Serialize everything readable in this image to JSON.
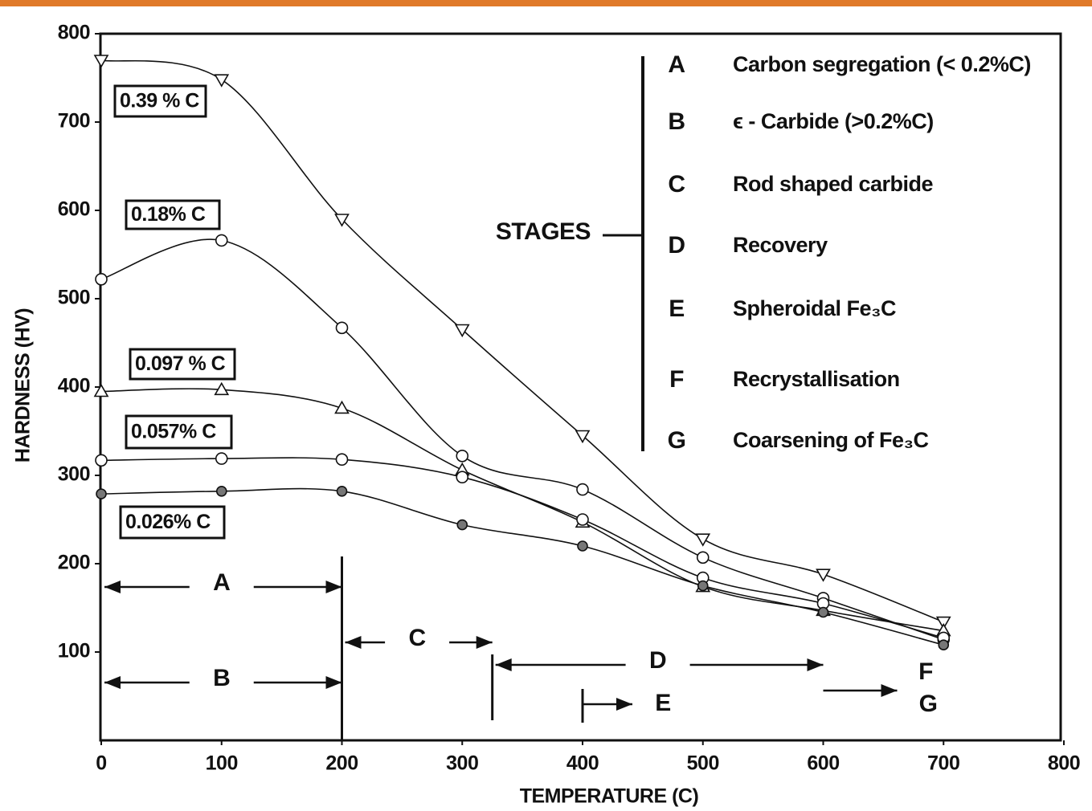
{
  "chart_data": {
    "type": "line",
    "x_label": "TEMPERATURE (C)",
    "y_label": "HARDNESS (HV)",
    "xlim": [
      0,
      800
    ],
    "ylim": [
      0,
      800
    ],
    "xticks": [
      0,
      100,
      200,
      300,
      400,
      500,
      600,
      700,
      800
    ],
    "yticks": [
      100,
      200,
      300,
      400,
      500,
      600,
      700,
      800
    ],
    "x": [
      0,
      100,
      200,
      300,
      400,
      500,
      600,
      700
    ],
    "series": [
      {
        "name": "0.39 % C",
        "color": "#111111",
        "marker": "triangle-down",
        "values": [
          770,
          748,
          590,
          465,
          345,
          228,
          188,
          134
        ]
      },
      {
        "name": "0.18% C",
        "color": "#111111",
        "marker": "circle",
        "values": [
          522,
          566,
          467,
          322,
          284,
          207,
          161,
          114
        ]
      },
      {
        "name": "0.097 % C",
        "color": "#111111",
        "marker": "triangle-up",
        "values": [
          395,
          397,
          376,
          306,
          247,
          174,
          147,
          124
        ]
      },
      {
        "name": "0.057% C",
        "color": "#111111",
        "marker": "circle",
        "values": [
          317,
          319,
          318,
          298,
          250,
          184,
          155,
          116
        ]
      },
      {
        "name": "0.026% C",
        "color": "#111111",
        "marker": "circle-filled",
        "values": [
          279,
          282,
          282,
          244,
          220,
          175,
          145,
          108
        ]
      }
    ],
    "stages_title": "STAGES",
    "stages": [
      {
        "letter": "A",
        "text": "Carbon segregation (< 0.2%C)"
      },
      {
        "letter": "B",
        "text": "ϵ - Carbide (>0.2%C)"
      },
      {
        "letter": "C",
        "text": "Rod shaped carbide"
      },
      {
        "letter": "D",
        "text": "Recovery"
      },
      {
        "letter": "E",
        "text": "Spheroidal  Fe₃C"
      },
      {
        "letter": "F",
        "text": "Recrystallisation"
      },
      {
        "letter": "G",
        "text": "Coarsening of  Fe₃C"
      }
    ],
    "stage_ranges": [
      {
        "label": "A",
        "from": 0,
        "to": 200
      },
      {
        "label": "B",
        "from": 0,
        "to": 200
      },
      {
        "label": "C",
        "from": 200,
        "to": 325
      },
      {
        "label": "D",
        "from": 325,
        "to": 600
      },
      {
        "label": "E",
        "from": 400
      },
      {
        "label": "F",
        "from": 600
      },
      {
        "label": "G",
        "from": 600
      }
    ]
  }
}
